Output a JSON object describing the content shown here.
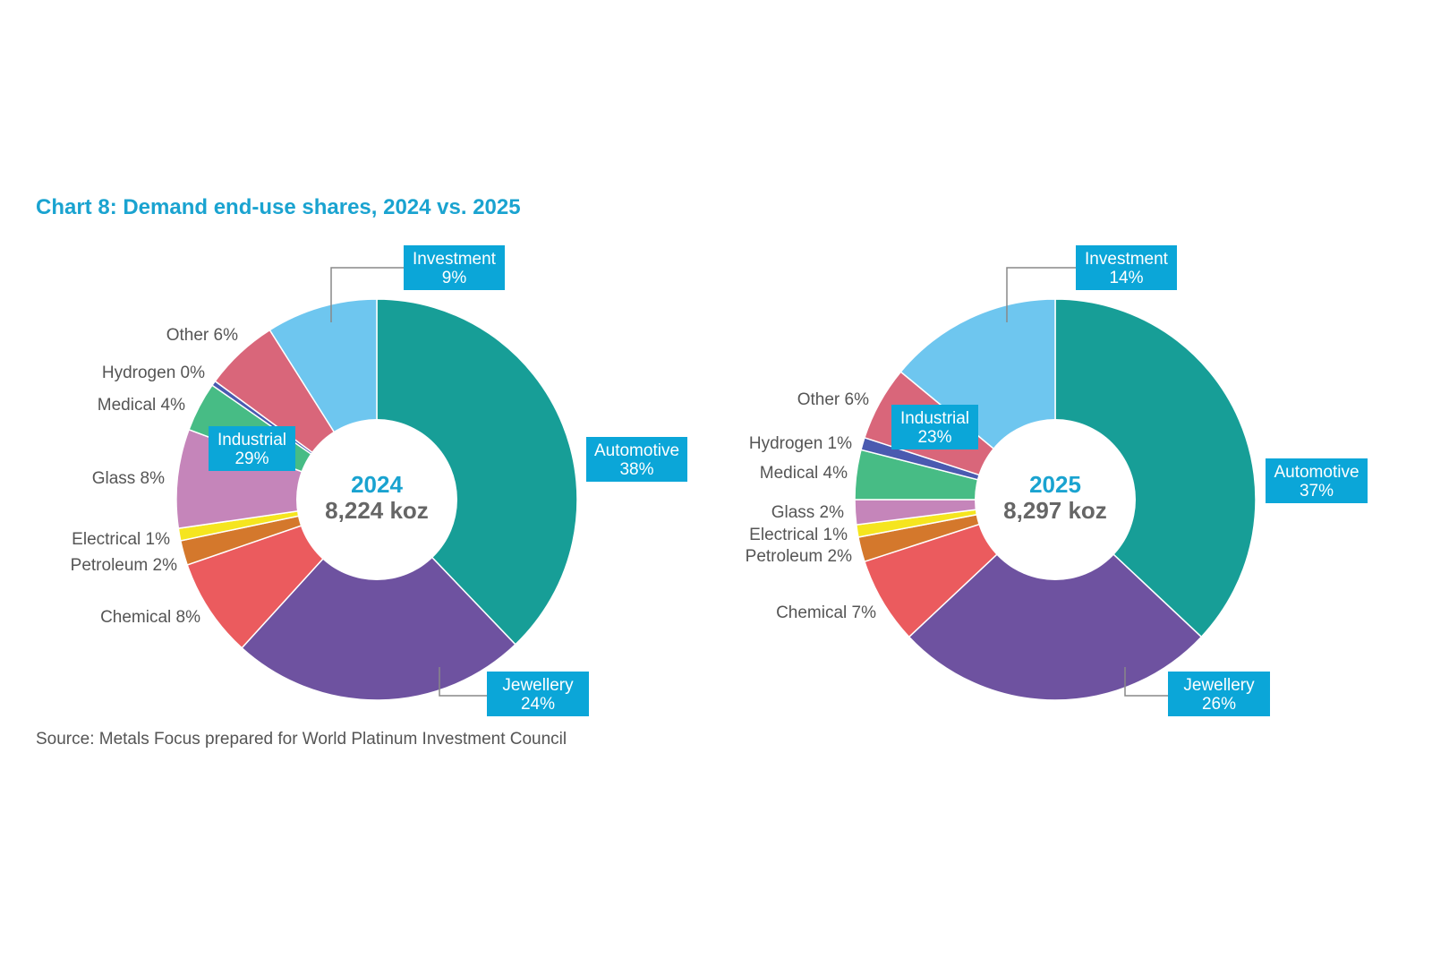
{
  "title": "Chart 8: Demand end-use shares, 2024 vs. 2025",
  "source": "Source: Metals Focus prepared for World Platinum Investment Council",
  "colors": {
    "Automotive": "#179e97",
    "Jewellery": "#6e52a0",
    "Chemical": "#eb5b5e",
    "Petroleum": "#d4782c",
    "Electrical": "#f5e51f",
    "Glass": "#c585ba",
    "Medical": "#47bc85",
    "Hydrogen": "#4a5ab0",
    "Other": "#d9667a",
    "Investment": "#6ec6ef",
    "label_box": "#0ba6d8"
  },
  "chart_data": [
    {
      "type": "pie",
      "donut": true,
      "center_year": "2024",
      "center_total": "8,224 koz",
      "categories": [
        "Automotive",
        "Jewellery",
        "Chemical",
        "Petroleum",
        "Electrical",
        "Glass",
        "Medical",
        "Hydrogen",
        "Other",
        "Investment"
      ],
      "values": [
        38,
        24,
        8,
        2,
        1,
        8,
        4,
        0.4,
        6,
        9
      ],
      "slice_labels": [
        "Automotive 38%",
        "Jewellery 24%",
        "Chemical 8%",
        "Petroleum 2%",
        "Electrical 1%",
        "Glass 8%",
        "Medical 4%",
        "Hydrogen 0%",
        "Other 6%",
        "Investment 9%"
      ],
      "boxed_labels": [
        {
          "name": "Automotive",
          "pct": "38%"
        },
        {
          "name": "Jewellery",
          "pct": "24%"
        },
        {
          "name": "Investment",
          "pct": "9%"
        },
        {
          "name": "Industrial",
          "pct": "29%"
        }
      ]
    },
    {
      "type": "pie",
      "donut": true,
      "center_year": "2025",
      "center_total": "8,297 koz",
      "categories": [
        "Automotive",
        "Jewellery",
        "Chemical",
        "Petroleum",
        "Electrical",
        "Glass",
        "Medical",
        "Hydrogen",
        "Other",
        "Investment"
      ],
      "values": [
        37,
        26,
        7,
        2,
        1,
        2,
        4,
        1,
        6,
        14
      ],
      "slice_labels": [
        "Automotive 37%",
        "Jewellery 26%",
        "Chemical 7%",
        "Petroleum 2%",
        "Electrical 1%",
        "Glass 2%",
        "Medical 4%",
        "Hydrogen 1%",
        "Other 6%",
        "Investment 14%"
      ],
      "boxed_labels": [
        {
          "name": "Automotive",
          "pct": "37%"
        },
        {
          "name": "Jewellery",
          "pct": "26%"
        },
        {
          "name": "Investment",
          "pct": "14%"
        },
        {
          "name": "Industrial",
          "pct": "23%"
        }
      ]
    }
  ]
}
